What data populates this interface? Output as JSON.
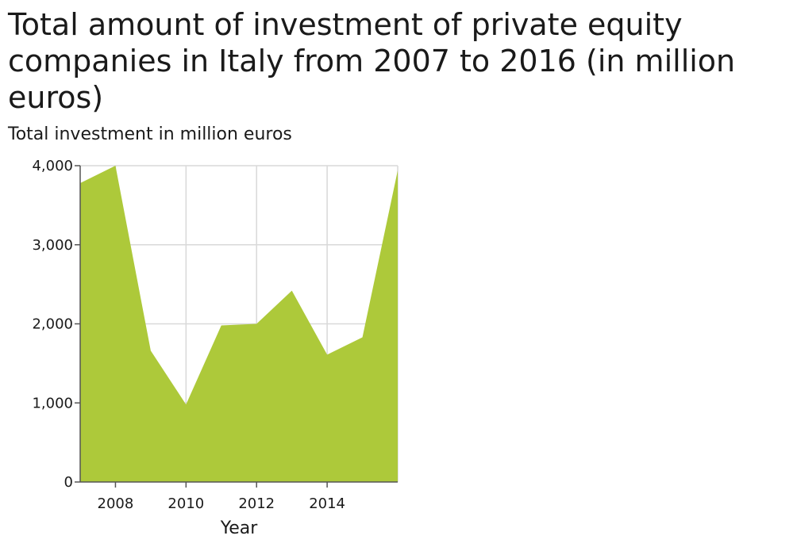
{
  "chart_data": {
    "type": "area",
    "title": "Total amount of investment of private equity companies in Italy from 2007 to 2016 (in million euros)",
    "xlabel": "Year",
    "ylabel": "Total investment in million euros",
    "x": [
      2007,
      2008,
      2009,
      2010,
      2011,
      2012,
      2013,
      2014,
      2015,
      2016
    ],
    "series": [
      {
        "values": [
          3780,
          4000,
          1660,
          980,
          1980,
          2000,
          2420,
          1610,
          1830,
          3940
        ]
      }
    ],
    "xlim": [
      2007,
      2016
    ],
    "ylim": [
      0,
      4000
    ],
    "x_ticks": [
      2008,
      2010,
      2012,
      2014
    ],
    "x_tick_labels": [
      "2008",
      "2010",
      "2012",
      "2014"
    ],
    "y_ticks": [
      0,
      1000,
      2000,
      3000,
      4000
    ],
    "y_tick_labels": [
      "0",
      "1,000",
      "2,000",
      "3,000",
      "4,000"
    ],
    "grid": true,
    "colors": {
      "fill": "#adc93a",
      "grid": "#d9d9d9",
      "axis": "#555555"
    }
  }
}
